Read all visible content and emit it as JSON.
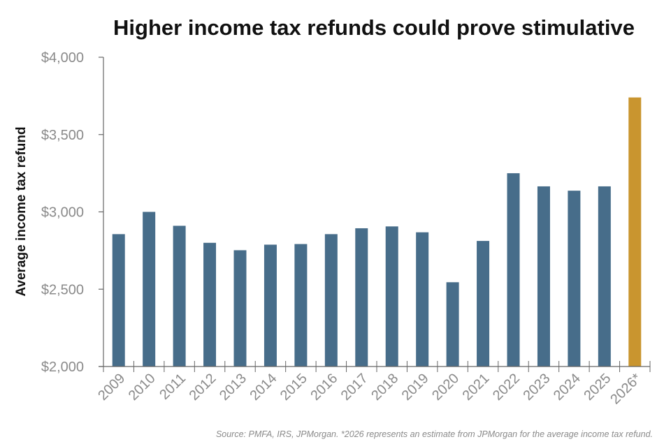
{
  "chart_data": {
    "type": "bar",
    "title": "Higher income tax refunds could prove stimulative",
    "ylabel": "Average income tax refund",
    "xlabel": "",
    "ylim": [
      2000,
      4000
    ],
    "yticks": [
      "$2,000",
      "$2,500",
      "$3,000",
      "$3,500",
      "$4,000"
    ],
    "ytick_values": [
      2000,
      2500,
      3000,
      3500,
      4000
    ],
    "categories": [
      "2009",
      "2010",
      "2011",
      "2012",
      "2013",
      "2014",
      "2015",
      "2016",
      "2017",
      "2018",
      "2019",
      "2020",
      "2021",
      "2022",
      "2023",
      "2024",
      "2025",
      "2026*"
    ],
    "values": [
      2856,
      3000,
      2910,
      2800,
      2752,
      2788,
      2792,
      2856,
      2894,
      2906,
      2868,
      2545,
      2812,
      3250,
      3165,
      3137,
      3165,
      3740
    ],
    "colors": {
      "actual": "#476d8a",
      "estimate": "#c9952f"
    },
    "highlight_category": "2026*",
    "grid": false,
    "legend": "none",
    "source": "Source: PMFA, IRS, JPMorgan. *2026 represents an estimate from JPMorgan for the average income tax refund."
  }
}
